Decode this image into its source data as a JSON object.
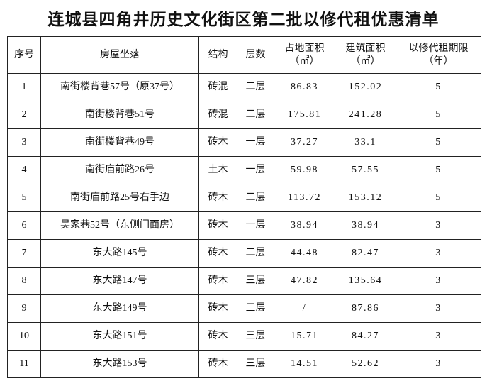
{
  "header": {
    "title": "连城县四角井历史文化街区第二批以修代租优惠清单"
  },
  "table": {
    "columns": [
      [
        "序号"
      ],
      [
        "房屋坐落"
      ],
      [
        "结构"
      ],
      [
        "层数"
      ],
      [
        "占地面积",
        "（㎡）"
      ],
      [
        "建筑面积",
        "（㎡）"
      ],
      [
        "以修代租期限",
        "（年）"
      ]
    ],
    "rows": [
      [
        "1",
        "南街楼背巷57号（原37号）",
        "砖混",
        "二层",
        "86.83",
        "152.02",
        "5"
      ],
      [
        "2",
        "南街楼背巷51号",
        "砖混",
        "二层",
        "175.81",
        "241.28",
        "5"
      ],
      [
        "3",
        "南街楼背巷49号",
        "砖木",
        "一层",
        "37.27",
        "33.1",
        "5"
      ],
      [
        "4",
        "南街庙前路26号",
        "土木",
        "一层",
        "59.98",
        "57.55",
        "5"
      ],
      [
        "5",
        "南街庙前路25号右手边",
        "砖木",
        "二层",
        "113.72",
        "153.12",
        "5"
      ],
      [
        "6",
        "吴家巷52号（东侧门面房）",
        "砖木",
        "一层",
        "38.94",
        "38.94",
        "3"
      ],
      [
        "7",
        "东大路145号",
        "砖木",
        "二层",
        "44.48",
        "82.47",
        "3"
      ],
      [
        "8",
        "东大路147号",
        "砖木",
        "三层",
        "47.82",
        "135.64",
        "3"
      ],
      [
        "9",
        "东大路149号",
        "砖木",
        "三层",
        "/",
        "87.86",
        "3"
      ],
      [
        "10",
        "东大路151号",
        "砖木",
        "三层",
        "15.71",
        "84.27",
        "3"
      ],
      [
        "11",
        "东大路153号",
        "砖木",
        "三层",
        "14.51",
        "52.62",
        "3"
      ]
    ]
  }
}
